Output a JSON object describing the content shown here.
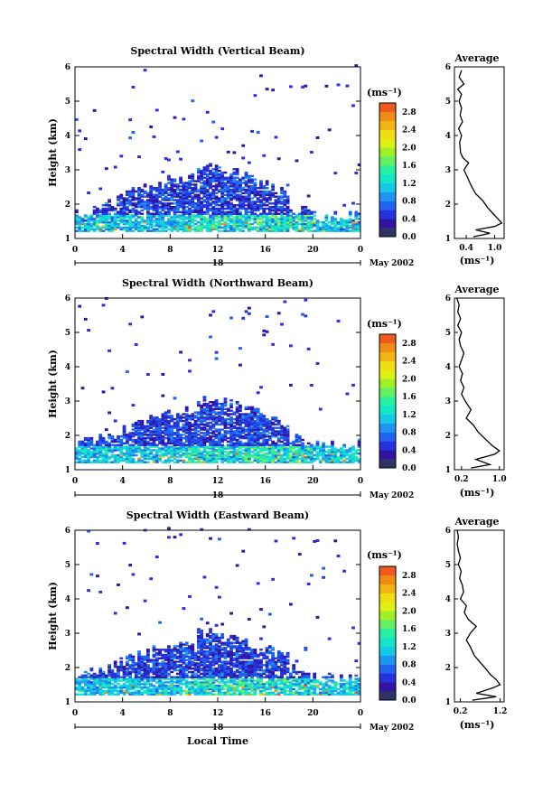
{
  "chart_data": [
    {
      "type": "heatmap",
      "title": "Spectral Width (Vertical Beam)",
      "ylabel": "Height (km)",
      "xlabel": "",
      "x_ticks": [
        "0",
        "4",
        "8",
        "12",
        "16",
        "20",
        "0"
      ],
      "y_ticks": [
        "1",
        "2",
        "3",
        "4",
        "5",
        "6"
      ],
      "xlim": [
        0,
        24
      ],
      "ylim": [
        1,
        6
      ],
      "date_label": "18",
      "month_label": "May 2002",
      "colorbar": {
        "unit": "(ms⁻¹)",
        "ticks": [
          "0.0",
          "0.4",
          "0.8",
          "1.2",
          "1.6",
          "2.0",
          "2.4",
          "2.8"
        ],
        "levels": [
          0,
          0.2,
          0.4,
          0.6,
          0.8,
          1.0,
          1.2,
          1.4,
          1.6,
          1.8,
          2.0,
          2.2,
          2.4,
          2.6,
          2.8,
          3.0
        ]
      },
      "profile": {
        "title": "Average",
        "xlabel": "(ms⁻¹)",
        "x_ticks": [
          "0.4",
          "1.0"
        ],
        "x_tick_values": [
          0.4,
          1.0
        ],
        "xlim": [
          0.15,
          1.2
        ],
        "ylim": [
          1,
          6
        ],
        "y_ticks": [
          "1",
          "2",
          "3",
          "4",
          "5",
          "6"
        ],
        "points": [
          [
            0.55,
            1.05
          ],
          [
            0.9,
            1.15
          ],
          [
            0.6,
            1.25
          ],
          [
            1.0,
            1.35
          ],
          [
            1.15,
            1.45
          ],
          [
            1.05,
            1.6
          ],
          [
            0.95,
            1.75
          ],
          [
            0.85,
            1.9
          ],
          [
            0.75,
            2.1
          ],
          [
            0.6,
            2.3
          ],
          [
            0.5,
            2.55
          ],
          [
            0.42,
            2.8
          ],
          [
            0.35,
            3.0
          ],
          [
            0.45,
            3.2
          ],
          [
            0.33,
            3.35
          ],
          [
            0.28,
            3.5
          ],
          [
            0.26,
            3.8
          ],
          [
            0.3,
            4.0
          ],
          [
            0.24,
            4.2
          ],
          [
            0.32,
            4.4
          ],
          [
            0.27,
            4.6
          ],
          [
            0.3,
            4.8
          ],
          [
            0.25,
            5.0
          ],
          [
            0.3,
            5.2
          ],
          [
            0.22,
            5.35
          ],
          [
            0.35,
            5.5
          ],
          [
            0.25,
            5.7
          ],
          [
            0.3,
            5.9
          ]
        ]
      }
    },
    {
      "type": "heatmap",
      "title": "Spectral Width (Northward Beam)",
      "ylabel": "Height (km)",
      "xlabel": "",
      "x_ticks": [
        "0",
        "4",
        "8",
        "12",
        "16",
        "20",
        "0"
      ],
      "y_ticks": [
        "1",
        "2",
        "3",
        "4",
        "5",
        "6"
      ],
      "xlim": [
        0,
        24
      ],
      "ylim": [
        1,
        6
      ],
      "date_label": "18",
      "month_label": "May 2002",
      "colorbar": {
        "unit": "(ms⁻¹)",
        "ticks": [
          "0.0",
          "0.4",
          "0.8",
          "1.2",
          "1.6",
          "2.0",
          "2.4",
          "2.8"
        ],
        "levels": [
          0,
          0.2,
          0.4,
          0.6,
          0.8,
          1.0,
          1.2,
          1.4,
          1.6,
          1.8,
          2.0,
          2.2,
          2.4,
          2.6,
          2.8,
          3.0
        ]
      },
      "profile": {
        "title": "Average",
        "xlabel": "(ms⁻¹)",
        "x_ticks": [
          "0.2",
          "1.0"
        ],
        "x_tick_values": [
          0.2,
          1.0
        ],
        "xlim": [
          0.05,
          1.1
        ],
        "ylim": [
          1,
          6
        ],
        "y_ticks": [
          "1",
          "2",
          "3",
          "4",
          "5",
          "6"
        ],
        "points": [
          [
            0.4,
            1.05
          ],
          [
            0.8,
            1.15
          ],
          [
            0.5,
            1.3
          ],
          [
            0.9,
            1.45
          ],
          [
            1.0,
            1.55
          ],
          [
            0.85,
            1.7
          ],
          [
            0.7,
            1.9
          ],
          [
            0.55,
            2.1
          ],
          [
            0.45,
            2.3
          ],
          [
            0.3,
            2.5
          ],
          [
            0.4,
            2.75
          ],
          [
            0.3,
            2.95
          ],
          [
            0.2,
            3.2
          ],
          [
            0.25,
            3.4
          ],
          [
            0.18,
            3.6
          ],
          [
            0.22,
            3.8
          ],
          [
            0.15,
            4.0
          ],
          [
            0.2,
            4.2
          ],
          [
            0.25,
            4.4
          ],
          [
            0.18,
            4.6
          ],
          [
            0.15,
            4.8
          ],
          [
            0.2,
            5.0
          ],
          [
            0.12,
            5.2
          ],
          [
            0.18,
            5.4
          ],
          [
            0.12,
            5.6
          ],
          [
            0.15,
            5.8
          ],
          [
            0.1,
            6.0
          ]
        ]
      }
    },
    {
      "type": "heatmap",
      "title": "Spectral Width (Eastward Beam)",
      "ylabel": "Height (km)",
      "xlabel": "Local Time",
      "x_ticks": [
        "0",
        "4",
        "8",
        "12",
        "16",
        "20",
        "0"
      ],
      "y_ticks": [
        "1",
        "2",
        "3",
        "4",
        "5",
        "6"
      ],
      "xlim": [
        0,
        24
      ],
      "ylim": [
        1,
        6
      ],
      "date_label": "18",
      "month_label": "May 2002",
      "colorbar": {
        "unit": "(ms⁻¹)",
        "ticks": [
          "0.0",
          "0.4",
          "0.8",
          "1.2",
          "1.6",
          "2.0",
          "2.4",
          "2.8"
        ],
        "levels": [
          0,
          0.2,
          0.4,
          0.6,
          0.8,
          1.0,
          1.2,
          1.4,
          1.6,
          1.8,
          2.0,
          2.2,
          2.4,
          2.6,
          2.8,
          3.0
        ]
      },
      "profile": {
        "title": "Average",
        "xlabel": "(ms⁻¹)",
        "x_ticks": [
          "0.2",
          "1.2"
        ],
        "x_tick_values": [
          0.2,
          1.2
        ],
        "xlim": [
          0.05,
          1.3
        ],
        "ylim": [
          1,
          6
        ],
        "y_ticks": [
          "1",
          "2",
          "3",
          "4",
          "5",
          "6"
        ],
        "points": [
          [
            0.5,
            1.05
          ],
          [
            1.1,
            1.15
          ],
          [
            0.6,
            1.25
          ],
          [
            1.0,
            1.4
          ],
          [
            1.2,
            1.5
          ],
          [
            1.1,
            1.65
          ],
          [
            0.95,
            1.8
          ],
          [
            0.85,
            1.95
          ],
          [
            0.7,
            2.15
          ],
          [
            0.55,
            2.35
          ],
          [
            0.45,
            2.6
          ],
          [
            0.35,
            2.8
          ],
          [
            0.45,
            3.0
          ],
          [
            0.6,
            3.2
          ],
          [
            0.4,
            3.4
          ],
          [
            0.3,
            3.6
          ],
          [
            0.35,
            3.8
          ],
          [
            0.2,
            4.0
          ],
          [
            0.28,
            4.2
          ],
          [
            0.25,
            4.4
          ],
          [
            0.18,
            4.6
          ],
          [
            0.22,
            4.8
          ],
          [
            0.15,
            5.0
          ],
          [
            0.2,
            5.2
          ],
          [
            0.15,
            5.4
          ],
          [
            0.12,
            5.6
          ],
          [
            0.15,
            5.8
          ],
          [
            0.12,
            6.0
          ]
        ]
      }
    }
  ],
  "colors": {
    "scale": [
      "#323264",
      "#3214a0",
      "#2832dc",
      "#1e64f0",
      "#1e96f0",
      "#14c8e6",
      "#14e6c8",
      "#28f0a0",
      "#64f064",
      "#a0f028",
      "#dcf014",
      "#f0dc14",
      "#f0b414",
      "#f08c14",
      "#f05a1e",
      "#f0282d"
    ]
  }
}
